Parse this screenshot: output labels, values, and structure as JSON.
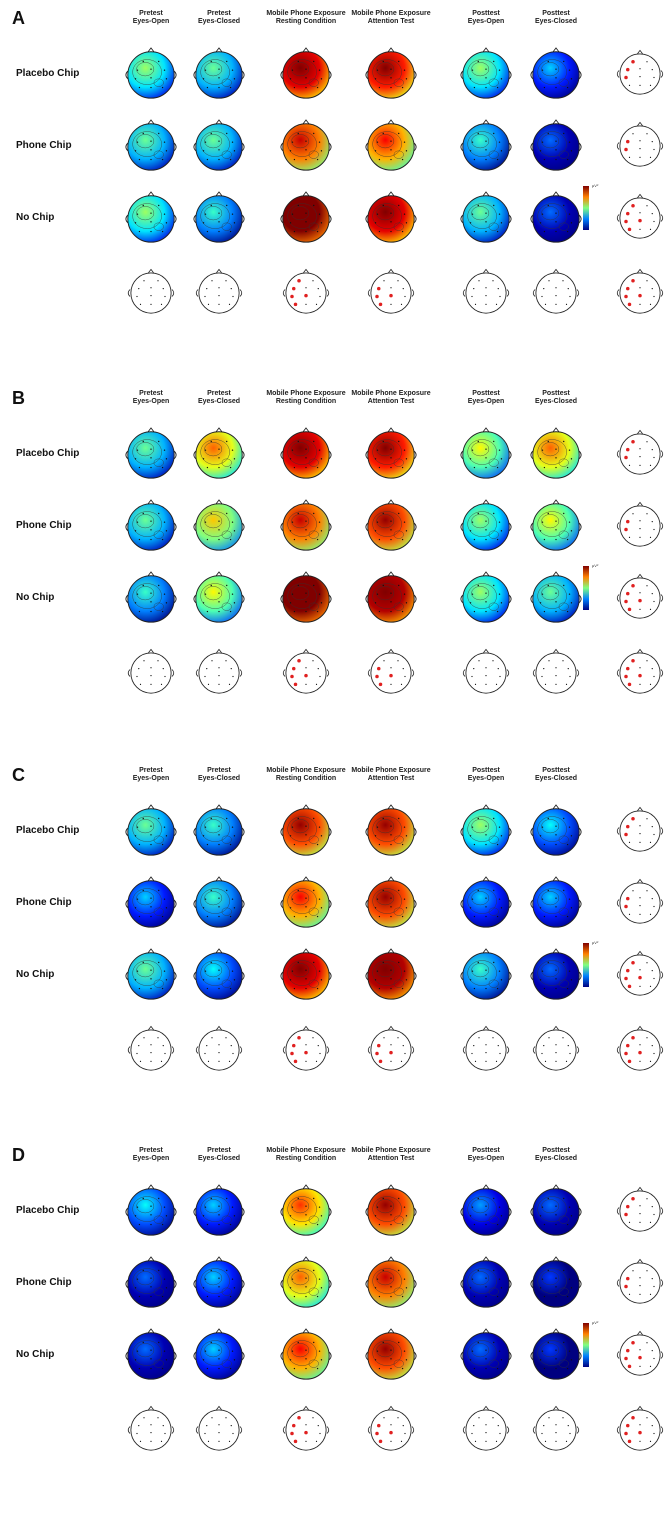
{
  "column_headers": [
    [
      "Pretest",
      "Eyes-Open"
    ],
    [
      "Pretest",
      "Eyes-Closed"
    ],
    [
      "Mobile Phone Exposure",
      "Resting Condition"
    ],
    [
      "Mobile Phone Exposure",
      "Attention Test"
    ],
    [
      "Posttest",
      "Eyes-Open"
    ],
    [
      "Posttest",
      "Eyes-Closed"
    ]
  ],
  "row_labels": [
    "Placebo Chip",
    "Phone Chip",
    "No Chip"
  ],
  "panels": [
    {
      "letter": "A",
      "colorbar_unit": "μV²",
      "maps": [
        [
          0.35,
          0.3,
          0.9,
          0.85,
          0.35,
          0.15
        ],
        [
          0.3,
          0.3,
          0.75,
          0.7,
          0.25,
          0.05
        ],
        [
          0.35,
          0.25,
          1.0,
          0.9,
          0.3,
          0.05
        ]
      ]
    },
    {
      "letter": "B",
      "colorbar_unit": "μV²",
      "maps": [
        [
          0.3,
          0.6,
          0.9,
          0.85,
          0.45,
          0.6
        ],
        [
          0.3,
          0.5,
          0.75,
          0.8,
          0.35,
          0.45
        ],
        [
          0.25,
          0.45,
          1.0,
          0.95,
          0.35,
          0.3
        ]
      ]
    },
    {
      "letter": "C",
      "colorbar_unit": "μV²",
      "maps": [
        [
          0.3,
          0.25,
          0.8,
          0.8,
          0.35,
          0.2
        ],
        [
          0.15,
          0.25,
          0.7,
          0.8,
          0.15,
          0.15
        ],
        [
          0.3,
          0.2,
          0.9,
          0.95,
          0.25,
          0.05
        ]
      ]
    },
    {
      "letter": "D",
      "colorbar_unit": "μV²",
      "maps": [
        [
          0.2,
          0.15,
          0.65,
          0.8,
          0.1,
          0.05
        ],
        [
          0.05,
          0.15,
          0.6,
          0.75,
          0.05,
          0.0
        ],
        [
          0.05,
          0.15,
          0.7,
          0.8,
          0.05,
          0.0
        ]
      ]
    }
  ]
}
